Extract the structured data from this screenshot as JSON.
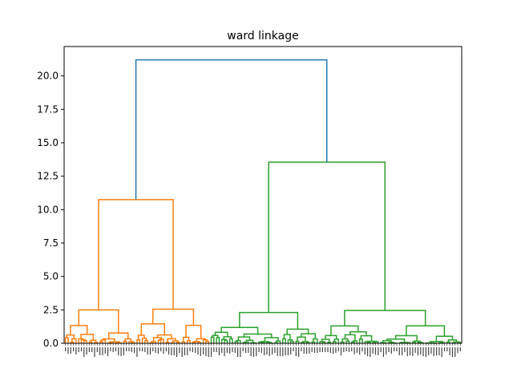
{
  "chart_data": {
    "type": "dendrogram",
    "title": "ward linkage",
    "xlabel": "",
    "ylabel": "",
    "ylim": [
      0,
      22.2
    ],
    "y_ticks": [
      "0.0",
      "2.5",
      "5.0",
      "7.5",
      "10.0",
      "12.5",
      "15.0",
      "17.5",
      "20.0"
    ],
    "leaf_count": 150,
    "leaf_labels_legible": false,
    "grid": false,
    "colors": {
      "root": "#1f77b4",
      "cluster_orange": "#ff7f0e",
      "cluster_green": "#2ca02c",
      "axes": "#000000"
    },
    "merge_heights": {
      "root": 21.2,
      "orange_cluster": 10.75,
      "green_cluster": 13.55,
      "orange_left_subcluster": 2.5,
      "orange_right_subcluster": 2.55,
      "green_left_subcluster": 2.3,
      "green_right_subcluster": 2.45
    }
  }
}
